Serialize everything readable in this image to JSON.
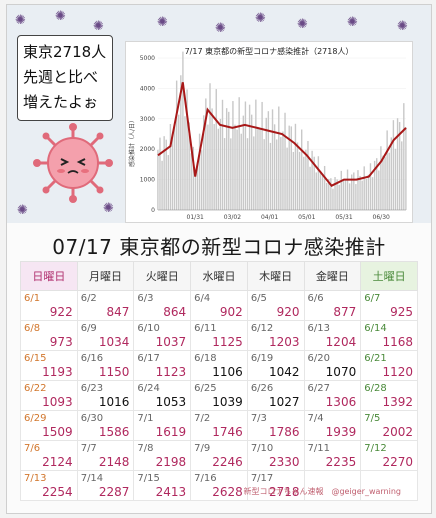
{
  "callout": {
    "lines": [
      "東京2718人",
      "先週と比べ",
      "増えたよぉ"
    ]
  },
  "chart": {
    "title": "7/17 東京都の新型コロナ感染推計（2718人）",
    "ylabel": "感染推計（人/日）",
    "yticks": [
      "0",
      "1000",
      "2000",
      "3000",
      "4000",
      "5000"
    ],
    "xticks": [
      "01/31",
      "03/02",
      "04/01",
      "05/01",
      "05/31",
      "06/30"
    ],
    "bar_color": "#c8c8c8",
    "line_color": "#a81818"
  },
  "chart_data": {
    "type": "line",
    "title": "7/17 東京都の新型コロナ感染推計（2718人）",
    "ylabel": "感染推計（人/日）",
    "ylim": [
      0,
      5000
    ],
    "x": [
      "01/01",
      "01/11",
      "01/21",
      "01/31",
      "02/10",
      "02/20",
      "03/02",
      "03/12",
      "03/22",
      "04/01",
      "04/11",
      "04/21",
      "05/01",
      "05/11",
      "05/21",
      "05/31",
      "06/10",
      "06/20",
      "06/30",
      "07/10",
      "07/17"
    ],
    "series": [
      {
        "name": "",
        "values": [
          1800,
          2100,
          4200,
          1100,
          3300,
          2800,
          2700,
          2800,
          2700,
          2600,
          2500,
          2200,
          1800,
          1300,
          800,
          1000,
          1000,
          1100,
          1600,
          2300,
          2700
        ]
      }
    ]
  },
  "heading": "07/17 東京都の新型コロナ感染推計",
  "weekdays": [
    "日曜日",
    "月曜日",
    "火曜日",
    "水曜日",
    "木曜日",
    "金曜日",
    "土曜日"
  ],
  "weeks": [
    [
      {
        "d": "6/1",
        "v": "922"
      },
      {
        "d": "6/2",
        "v": "847"
      },
      {
        "d": "6/3",
        "v": "864"
      },
      {
        "d": "6/4",
        "v": "902"
      },
      {
        "d": "6/5",
        "v": "920"
      },
      {
        "d": "6/6",
        "v": "877"
      },
      {
        "d": "6/7",
        "v": "925"
      }
    ],
    [
      {
        "d": "6/8",
        "v": "973"
      },
      {
        "d": "6/9",
        "v": "1034"
      },
      {
        "d": "6/10",
        "v": "1037"
      },
      {
        "d": "6/11",
        "v": "1125"
      },
      {
        "d": "6/12",
        "v": "1203"
      },
      {
        "d": "6/13",
        "v": "1204"
      },
      {
        "d": "6/14",
        "v": "1168"
      }
    ],
    [
      {
        "d": "6/15",
        "v": "1193"
      },
      {
        "d": "6/16",
        "v": "1150"
      },
      {
        "d": "6/17",
        "v": "1123"
      },
      {
        "d": "6/18",
        "v": "1106"
      },
      {
        "d": "6/19",
        "v": "1042"
      },
      {
        "d": "6/20",
        "v": "1070"
      },
      {
        "d": "6/21",
        "v": "1120"
      }
    ],
    [
      {
        "d": "6/22",
        "v": "1093"
      },
      {
        "d": "6/23",
        "v": "1016"
      },
      {
        "d": "6/24",
        "v": "1053"
      },
      {
        "d": "6/25",
        "v": "1039"
      },
      {
        "d": "6/26",
        "v": "1027"
      },
      {
        "d": "6/27",
        "v": "1306"
      },
      {
        "d": "6/28",
        "v": "1392"
      }
    ],
    [
      {
        "d": "6/29",
        "v": "1509"
      },
      {
        "d": "6/30",
        "v": "1586"
      },
      {
        "d": "7/1",
        "v": "1619"
      },
      {
        "d": "7/2",
        "v": "1746"
      },
      {
        "d": "7/3",
        "v": "1786"
      },
      {
        "d": "7/4",
        "v": "1939"
      },
      {
        "d": "7/5",
        "v": "2002"
      }
    ],
    [
      {
        "d": "7/6",
        "v": "2124"
      },
      {
        "d": "7/7",
        "v": "2148"
      },
      {
        "d": "7/8",
        "v": "2198"
      },
      {
        "d": "7/9",
        "v": "2246"
      },
      {
        "d": "7/10",
        "v": "2330"
      },
      {
        "d": "7/11",
        "v": "2235"
      },
      {
        "d": "7/12",
        "v": "2270"
      }
    ],
    [
      {
        "d": "7/13",
        "v": "2254"
      },
      {
        "d": "7/14",
        "v": "2287"
      },
      {
        "d": "7/15",
        "v": "2413"
      },
      {
        "d": "7/16",
        "v": "2628"
      },
      {
        "d": "7/17",
        "v": "2718"
      },
      {
        "d": "",
        "v": ""
      },
      {
        "d": "",
        "v": ""
      }
    ]
  ],
  "credit": "新型コロナちゃん速報　@geiger_warning"
}
